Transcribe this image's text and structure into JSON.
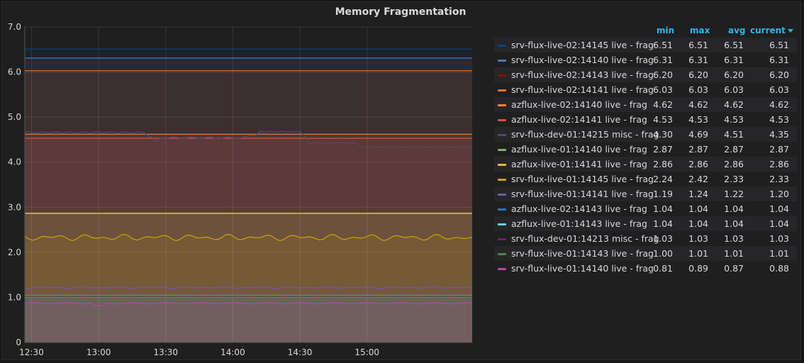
{
  "panel": {
    "title": "Memory Fragmentation",
    "legend_headers": {
      "min": "min",
      "max": "max",
      "avg": "avg",
      "current": "current"
    },
    "sort_icon": "caret-down-icon"
  },
  "chart_data": {
    "type": "line",
    "title": "Memory Fragmentation",
    "xlabel": "",
    "ylabel": "",
    "ylim": [
      0,
      7
    ],
    "yticks": [
      "0",
      "1.0",
      "2.0",
      "3.0",
      "4.0",
      "5.0",
      "6.0",
      "7.0"
    ],
    "xlim": [
      "12:27",
      "15:47"
    ],
    "xticks": [
      "12:30",
      "13:00",
      "13:30",
      "14:00",
      "14:30",
      "15:00"
    ],
    "grid": true,
    "fill": true,
    "legend_position": "right",
    "series": [
      {
        "name": "srv-flux-live-02:14145 live - frag",
        "color": "#0a437c",
        "min": "6.51",
        "max": "6.51",
        "avg": "6.51",
        "current": "6.51",
        "profile": "flat"
      },
      {
        "name": "srv-flux-live-02:14140 live - frag",
        "color": "#447ebc",
        "min": "6.31",
        "max": "6.31",
        "avg": "6.31",
        "current": "6.31",
        "profile": "flat"
      },
      {
        "name": "srv-flux-live-02:14143 live - frag",
        "color": "#890f02",
        "min": "6.20",
        "max": "6.20",
        "avg": "6.20",
        "current": "6.20",
        "profile": "flat"
      },
      {
        "name": "srv-flux-live-02:14141 live - frag",
        "color": "#e0752d",
        "min": "6.03",
        "max": "6.03",
        "avg": "6.03",
        "current": "6.03",
        "profile": "flat"
      },
      {
        "name": "azflux-live-02:14140 live - frag",
        "color": "#ef843c",
        "min": "4.62",
        "max": "4.62",
        "avg": "4.62",
        "current": "4.62",
        "profile": "flat"
      },
      {
        "name": "azflux-live-02:14141 live - frag",
        "color": "#e24d42",
        "min": "4.53",
        "max": "4.53",
        "avg": "4.53",
        "current": "4.53",
        "profile": "flat"
      },
      {
        "name": "srv-flux-dev-01:14215 misc - frag",
        "color": "#584477",
        "min": "4.30",
        "max": "4.69",
        "avg": "4.51",
        "current": "4.35",
        "profile": "dev"
      },
      {
        "name": "azflux-live-01:14140 live - frag",
        "color": "#7eb26d",
        "min": "2.87",
        "max": "2.87",
        "avg": "2.87",
        "current": "2.87",
        "profile": "flat"
      },
      {
        "name": "azflux-live-01:14141 live - frag",
        "color": "#eab839",
        "min": "2.86",
        "max": "2.86",
        "avg": "2.86",
        "current": "2.86",
        "profile": "flat"
      },
      {
        "name": "srv-flux-live-01:14145 live - frag",
        "color": "#cca300",
        "min": "2.24",
        "max": "2.42",
        "avg": "2.33",
        "current": "2.33",
        "profile": "wavy"
      },
      {
        "name": "srv-flux-live-01:14141 live - frag",
        "color": "#705da0",
        "min": "1.19",
        "max": "1.24",
        "avg": "1.22",
        "current": "1.20",
        "profile": "wavy"
      },
      {
        "name": "azflux-live-02:14143 live - frag",
        "color": "#1f78c1",
        "min": "1.04",
        "max": "1.04",
        "avg": "1.04",
        "current": "1.04",
        "profile": "flat"
      },
      {
        "name": "azflux-live-01:14143 live - frag",
        "color": "#6ed0e0",
        "min": "1.04",
        "max": "1.04",
        "avg": "1.04",
        "current": "1.04",
        "profile": "flat"
      },
      {
        "name": "srv-flux-dev-01:14213 misc - frag",
        "color": "#6d1f62",
        "min": "1.03",
        "max": "1.03",
        "avg": "1.03",
        "current": "1.03",
        "profile": "flat"
      },
      {
        "name": "srv-flux-live-01:14143 live - frag",
        "color": "#508642",
        "min": "1.00",
        "max": "1.01",
        "avg": "1.01",
        "current": "1.01",
        "profile": "flat"
      },
      {
        "name": "srv-flux-live-01:14140 live - frag",
        "color": "#ba43a9",
        "min": "0.81",
        "max": "0.89",
        "avg": "0.87",
        "current": "0.88",
        "profile": "low"
      }
    ]
  }
}
